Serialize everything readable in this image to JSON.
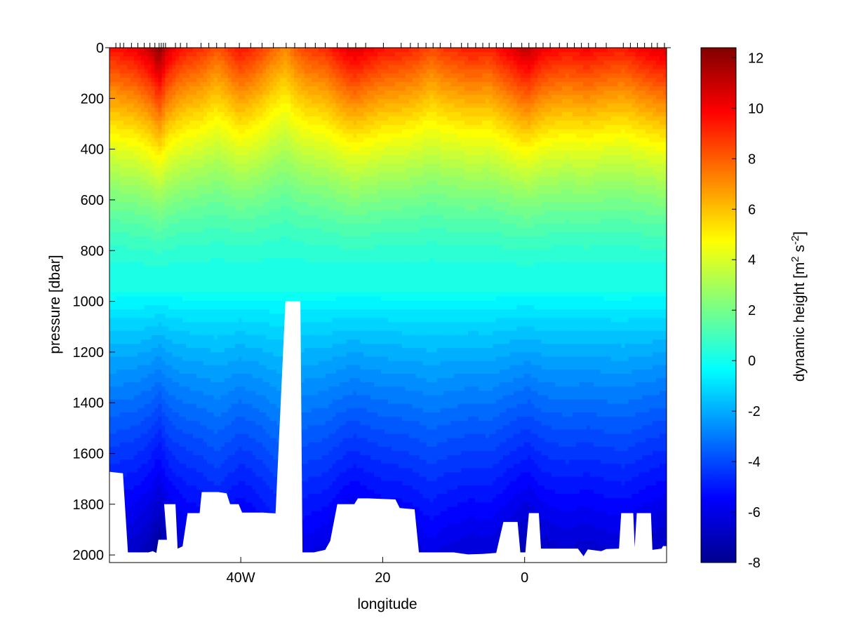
{
  "chart_data": {
    "type": "heatmap",
    "title": "",
    "xlabel": "longitude",
    "ylabel": "pressure [dbar]",
    "colorbar_label_parts": {
      "base": "dynamic height [m",
      "sup1": "2",
      "mid": " s",
      "sup2": "-2",
      "end": "]"
    },
    "x_range": [
      -58.5,
      20.0
    ],
    "y_range": [
      0,
      2030
    ],
    "y_reversed": true,
    "x_ticks": [
      {
        "value": -40,
        "label": "40W"
      },
      {
        "value": -20,
        "label": "20"
      },
      {
        "value": 0,
        "label": "0"
      }
    ],
    "y_ticks": [
      0,
      200,
      400,
      600,
      800,
      1000,
      1200,
      1400,
      1600,
      1800,
      2000
    ],
    "colorbar_range": [
      -8,
      12.4
    ],
    "colorbar_ticks": [
      -8,
      -6,
      -4,
      -2,
      0,
      2,
      4,
      6,
      8,
      10,
      12
    ],
    "colormap": "jet",
    "station_longitudes": [
      -57.6,
      -57.0,
      -56.5,
      -55.4,
      -54.5,
      -53.6,
      -52.8,
      -52.1,
      -51.5,
      -51.2,
      -50.9,
      -50.6,
      -49.2,
      -48.5,
      -47.6,
      -45.6,
      -44.5,
      -43.4,
      -42.2,
      -40.2,
      -38.6,
      -37.0,
      -35.4,
      -33.6,
      -32.4,
      -30.9,
      -29.5,
      -28.1,
      -26.4,
      -24.9,
      -23.8,
      -22.4,
      -19.9,
      -17.4,
      -16.1,
      -15.0,
      -13.9,
      -12.9,
      -11.9,
      -10.4,
      -8.9,
      -8.0,
      -6.9,
      -5.9,
      -5.0,
      -4.0,
      -3.0,
      -1.9,
      -0.4,
      0.6,
      1.6,
      2.6,
      3.6,
      4.9,
      6.0,
      7.0,
      8.0,
      9.0,
      10.0,
      11.5,
      13.9,
      14.9,
      15.9,
      16.9,
      17.9,
      18.7,
      19.7
    ],
    "surface_dynamic_height": [
      9.6,
      9.8,
      9.9,
      10.0,
      10.3,
      10.7,
      11.1,
      11.8,
      12.4,
      12.1,
      11.6,
      11.0,
      10.0,
      9.7,
      9.4,
      9.0,
      8.6,
      8.2,
      8.6,
      9.6,
      9.2,
      8.6,
      7.8,
      7.2,
      8.0,
      8.6,
      8.8,
      9.0,
      9.8,
      10.4,
      10.6,
      10.2,
      9.6,
      9.4,
      9.2,
      9.0,
      8.6,
      8.4,
      8.8,
      9.0,
      9.2,
      9.4,
      9.4,
      9.3,
      9.2,
      9.6,
      10.0,
      10.4,
      11.0,
      11.2,
      10.6,
      10.2,
      10.0,
      9.8,
      9.7,
      9.8,
      9.9,
      10.0,
      9.8,
      9.6,
      9.4,
      9.6,
      9.9,
      10.1,
      10.3,
      10.5,
      10.6
    ],
    "bottom_depth_profile": [
      {
        "x": -58.5,
        "depth": 1672
      },
      {
        "x": -56.6,
        "depth": 1678
      },
      {
        "x": -55.9,
        "depth": 1990
      },
      {
        "x": -53.0,
        "depth": 1990
      },
      {
        "x": -52.4,
        "depth": 1985
      },
      {
        "x": -51.9,
        "depth": 1992
      },
      {
        "x": -51.6,
        "depth": 1940
      },
      {
        "x": -50.4,
        "depth": 1940
      },
      {
        "x": -50.8,
        "depth": 1800
      },
      {
        "x": -49.2,
        "depth": 1800
      },
      {
        "x": -48.9,
        "depth": 1975
      },
      {
        "x": -48.2,
        "depth": 1966
      },
      {
        "x": -47.5,
        "depth": 1835
      },
      {
        "x": -45.8,
        "depth": 1835
      },
      {
        "x": -45.5,
        "depth": 1752
      },
      {
        "x": -43.2,
        "depth": 1752
      },
      {
        "x": -42.0,
        "depth": 1757
      },
      {
        "x": -41.5,
        "depth": 1800
      },
      {
        "x": -40.3,
        "depth": 1800
      },
      {
        "x": -39.8,
        "depth": 1833
      },
      {
        "x": -36.9,
        "depth": 1833
      },
      {
        "x": -35.1,
        "depth": 1836
      },
      {
        "x": -33.7,
        "depth": 1000
      },
      {
        "x": -31.6,
        "depth": 1000
      },
      {
        "x": -31.3,
        "depth": 1990
      },
      {
        "x": -29.7,
        "depth": 1990
      },
      {
        "x": -28.1,
        "depth": 1980
      },
      {
        "x": -27.4,
        "depth": 1945
      },
      {
        "x": -26.4,
        "depth": 1800
      },
      {
        "x": -24.0,
        "depth": 1800
      },
      {
        "x": -23.5,
        "depth": 1777
      },
      {
        "x": -22.0,
        "depth": 1777
      },
      {
        "x": -18.2,
        "depth": 1781
      },
      {
        "x": -17.6,
        "depth": 1815
      },
      {
        "x": -15.5,
        "depth": 1820
      },
      {
        "x": -14.9,
        "depth": 1990
      },
      {
        "x": -10.0,
        "depth": 1990
      },
      {
        "x": -8.0,
        "depth": 1998
      },
      {
        "x": -6.0,
        "depth": 1996
      },
      {
        "x": -4.0,
        "depth": 1992
      },
      {
        "x": -3.0,
        "depth": 1870
      },
      {
        "x": -1.0,
        "depth": 1870
      },
      {
        "x": -0.6,
        "depth": 1990
      },
      {
        "x": 0.1,
        "depth": 1990
      },
      {
        "x": 0.6,
        "depth": 1835
      },
      {
        "x": 2.0,
        "depth": 1835
      },
      {
        "x": 2.3,
        "depth": 1975
      },
      {
        "x": 7.5,
        "depth": 1975
      },
      {
        "x": 8.3,
        "depth": 2005
      },
      {
        "x": 8.9,
        "depth": 1978
      },
      {
        "x": 10.8,
        "depth": 1985
      },
      {
        "x": 11.5,
        "depth": 1977
      },
      {
        "x": 13.3,
        "depth": 1975
      },
      {
        "x": 13.6,
        "depth": 1835
      },
      {
        "x": 15.3,
        "depth": 1835
      },
      {
        "x": 15.5,
        "depth": 1970
      },
      {
        "x": 15.8,
        "depth": 1835
      },
      {
        "x": 17.8,
        "depth": 1835
      },
      {
        "x": 18.0,
        "depth": 1980
      },
      {
        "x": 19.3,
        "depth": 1975
      },
      {
        "x": 19.5,
        "depth": 1965
      },
      {
        "x": 20.0,
        "depth": 1965
      }
    ]
  }
}
